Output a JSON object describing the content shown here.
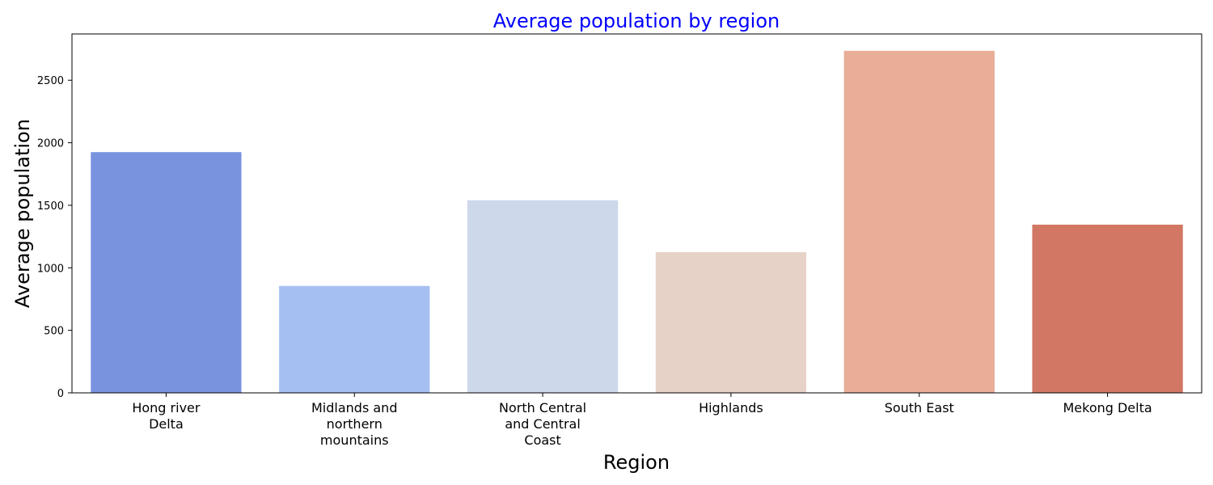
{
  "chart_data": {
    "type": "bar",
    "title": "Average population by region",
    "xlabel": "Region",
    "ylabel": "Average population",
    "categories": [
      "Hong river\nDelta",
      "Midlands and\nnorthern\nmountains",
      "North Central\nand Central\nCoast",
      "Highlands",
      "South East",
      "Mekong Delta"
    ],
    "values": [
      1925,
      855,
      1540,
      1125,
      2735,
      1345
    ],
    "ylim": [
      0,
      2870
    ],
    "yticks": [
      0,
      500,
      1000,
      1500,
      2000,
      2500
    ],
    "colors": [
      "#7a93df",
      "#a6bff3",
      "#cdd8eb",
      "#e7d2c7",
      "#e9ae97",
      "#d17764"
    ],
    "title_color": "#0000ff",
    "grid": false,
    "legend": "none"
  }
}
